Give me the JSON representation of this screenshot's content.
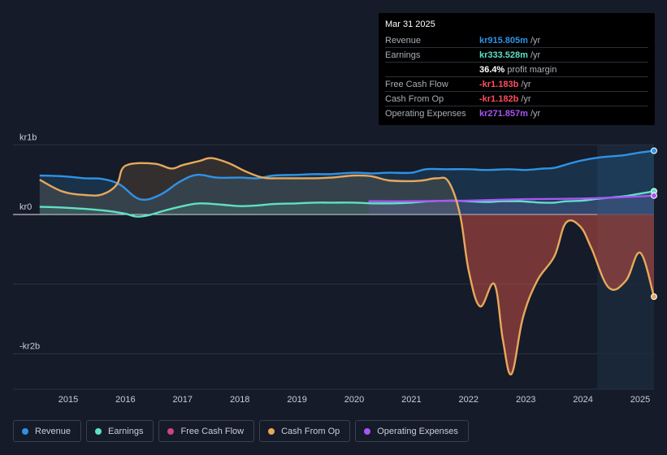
{
  "tooltip": {
    "date": "Mar 31 2025",
    "rows": [
      {
        "label": "Revenue",
        "value": "kr915.805m",
        "unit": "/yr",
        "color": "#2e93e6"
      },
      {
        "label": "Earnings",
        "value": "kr333.528m",
        "unit": "/yr",
        "color": "#5fe0c4"
      },
      {
        "label": "",
        "value": "36.4%",
        "unit": "profit margin",
        "color": "#ffffff"
      },
      {
        "label": "Free Cash Flow",
        "value": "-kr1.183b",
        "unit": "/yr",
        "color": "#ff4d5e"
      },
      {
        "label": "Cash From Op",
        "value": "-kr1.182b",
        "unit": "/yr",
        "color": "#ff4d5e"
      },
      {
        "label": "Operating Expenses",
        "value": "kr271.857m",
        "unit": "/yr",
        "color": "#a855f7"
      }
    ]
  },
  "legend": [
    {
      "label": "Revenue",
      "color": "#2e93e6"
    },
    {
      "label": "Earnings",
      "color": "#5fe0c4"
    },
    {
      "label": "Free Cash Flow",
      "color": "#d0467c"
    },
    {
      "label": "Cash From Op",
      "color": "#e8a85c"
    },
    {
      "label": "Operating Expenses",
      "color": "#a855f7"
    }
  ],
  "chart_data": {
    "type": "area",
    "y_unit": "kr billions",
    "ylim": [
      -2.5,
      1.0
    ],
    "y_tick_labels": [
      {
        "label": "kr1b",
        "value": 1.0
      },
      {
        "label": "kr0",
        "value": 0
      },
      {
        "label": "-kr2b",
        "value": -2.0
      }
    ],
    "gridlines": [
      1.0,
      0,
      -1.0,
      -2.0
    ],
    "xlim": [
      2014.05,
      2025.25
    ],
    "x_ticks": [
      "2015",
      "2016",
      "2017",
      "2018",
      "2019",
      "2020",
      "2021",
      "2022",
      "2023",
      "2024",
      "2025"
    ],
    "x_tick_values": [
      2015,
      2016,
      2017,
      2018,
      2019,
      2020,
      2021,
      2022,
      2023,
      2024,
      2025
    ],
    "forecast_start": 2024.25,
    "series": [
      {
        "name": "Revenue",
        "color": "#2e93e6",
        "x": [
          2014.5,
          2014.9,
          2015.3,
          2015.6,
          2015.9,
          2016.25,
          2016.6,
          2016.95,
          2017.25,
          2017.6,
          2018.0,
          2018.3,
          2018.6,
          2019.0,
          2019.3,
          2019.6,
          2020.0,
          2020.3,
          2020.6,
          2021.0,
          2021.25,
          2021.6,
          2022.0,
          2022.3,
          2022.7,
          2023.0,
          2023.3,
          2023.5,
          2023.8,
          2024.0,
          2024.3,
          2024.7,
          2025.0,
          2025.25
        ],
        "y": [
          0.56,
          0.55,
          0.52,
          0.51,
          0.43,
          0.22,
          0.28,
          0.47,
          0.57,
          0.53,
          0.53,
          0.52,
          0.56,
          0.57,
          0.58,
          0.58,
          0.6,
          0.59,
          0.6,
          0.6,
          0.65,
          0.65,
          0.65,
          0.64,
          0.65,
          0.64,
          0.66,
          0.67,
          0.74,
          0.78,
          0.82,
          0.85,
          0.89,
          0.916
        ]
      },
      {
        "name": "Earnings",
        "color": "#5fe0c4",
        "x": [
          2014.5,
          2014.9,
          2015.3,
          2015.7,
          2016.0,
          2016.2,
          2016.4,
          2016.7,
          2017.0,
          2017.3,
          2017.7,
          2018.0,
          2018.3,
          2018.6,
          2019.0,
          2019.3,
          2019.6,
          2020.0,
          2020.3,
          2020.7,
          2021.0,
          2021.3,
          2021.7,
          2022.0,
          2022.3,
          2022.6,
          2022.9,
          2023.1,
          2023.3,
          2023.5,
          2023.7,
          2024.0,
          2024.3,
          2024.7,
          2025.0,
          2025.25
        ],
        "y": [
          0.11,
          0.1,
          0.08,
          0.05,
          0.01,
          -0.03,
          -0.01,
          0.06,
          0.12,
          0.16,
          0.14,
          0.12,
          0.13,
          0.15,
          0.16,
          0.17,
          0.17,
          0.17,
          0.16,
          0.16,
          0.17,
          0.19,
          0.2,
          0.19,
          0.18,
          0.19,
          0.19,
          0.18,
          0.17,
          0.17,
          0.19,
          0.2,
          0.23,
          0.26,
          0.3,
          0.334
        ]
      },
      {
        "name": "Free Cash Flow",
        "color": "#d0467c",
        "x": [
          2014.5,
          2014.9,
          2015.3,
          2015.6,
          2015.85,
          2016.0,
          2016.5,
          2016.8,
          2017.0,
          2017.3,
          2017.5,
          2017.8,
          2018.1,
          2018.4,
          2018.7,
          2019.0,
          2019.3,
          2019.6,
          2020.0,
          2020.3,
          2020.6,
          2021.0,
          2021.2,
          2021.45,
          2021.65,
          2021.85,
          2022.0,
          2022.2,
          2022.45,
          2022.6,
          2022.75,
          2022.95,
          2023.2,
          2023.5,
          2023.7,
          2023.95,
          2024.15,
          2024.45,
          2024.75,
          2025.0,
          2025.25
        ],
        "y": [
          0.5,
          0.33,
          0.28,
          0.29,
          0.43,
          0.7,
          0.73,
          0.66,
          0.71,
          0.77,
          0.81,
          0.74,
          0.62,
          0.53,
          0.52,
          0.52,
          0.52,
          0.53,
          0.56,
          0.55,
          0.49,
          0.48,
          0.49,
          0.52,
          0.47,
          0.0,
          -0.8,
          -1.32,
          -1.0,
          -1.8,
          -2.29,
          -1.48,
          -0.95,
          -0.6,
          -0.12,
          -0.17,
          -0.49,
          -1.05,
          -0.95,
          -0.55,
          -1.18
        ]
      },
      {
        "name": "Cash From Op",
        "color": "#e8a85c",
        "x": [
          2014.5,
          2014.9,
          2015.3,
          2015.6,
          2015.85,
          2016.0,
          2016.5,
          2016.8,
          2017.0,
          2017.3,
          2017.5,
          2017.8,
          2018.1,
          2018.4,
          2018.7,
          2019.0,
          2019.3,
          2019.6,
          2020.0,
          2020.3,
          2020.6,
          2021.0,
          2021.2,
          2021.45,
          2021.65,
          2021.85,
          2022.0,
          2022.2,
          2022.45,
          2022.6,
          2022.75,
          2022.95,
          2023.2,
          2023.5,
          2023.7,
          2023.95,
          2024.15,
          2024.45,
          2024.75,
          2025.0,
          2025.25
        ],
        "y": [
          0.5,
          0.33,
          0.28,
          0.29,
          0.43,
          0.7,
          0.73,
          0.66,
          0.71,
          0.77,
          0.81,
          0.74,
          0.62,
          0.53,
          0.52,
          0.52,
          0.52,
          0.53,
          0.56,
          0.55,
          0.49,
          0.48,
          0.49,
          0.52,
          0.47,
          0.0,
          -0.8,
          -1.32,
          -1.0,
          -1.8,
          -2.29,
          -1.48,
          -0.95,
          -0.6,
          -0.12,
          -0.17,
          -0.49,
          -1.05,
          -0.95,
          -0.55,
          -1.18
        ]
      },
      {
        "name": "Operating Expenses",
        "color": "#a855f7",
        "x": [
          2020.25,
          2021.0,
          2022.0,
          2023.0,
          2024.0,
          2025.0,
          2025.25
        ],
        "y": [
          0.19,
          0.19,
          0.2,
          0.22,
          0.23,
          0.26,
          0.272
        ]
      }
    ]
  }
}
